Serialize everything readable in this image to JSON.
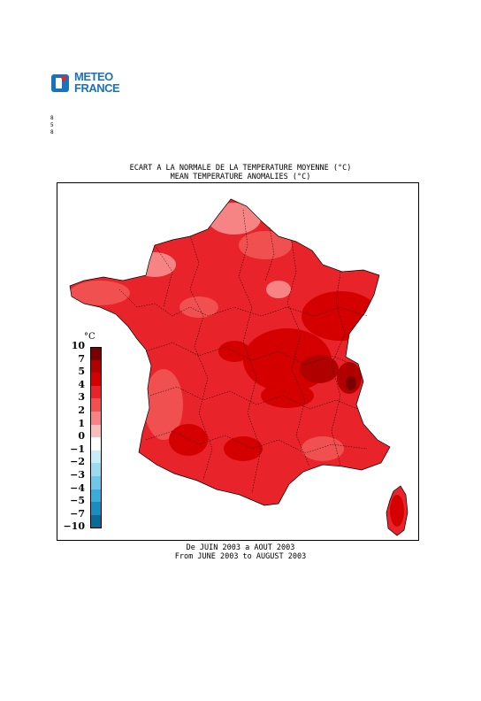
{
  "logo": {
    "line1": "METEO",
    "line2": "FRANCE"
  },
  "side_marks": [
    "8",
    "5",
    "8"
  ],
  "title": {
    "fr": "ECART A LA NORMALE DE LA TEMPERATURE MOYENNE (°C)",
    "en": "MEAN TEMPERATURE ANOMALIES (°C)"
  },
  "period": {
    "fr": "De JUIN 2003 a AOUT 2003",
    "en": "From JUNE 2003 to AUGUST 2003"
  },
  "legend": {
    "unit": "°C",
    "levels": [
      "10",
      "7",
      "5",
      "4",
      "3",
      "2",
      "1",
      "0",
      "−1",
      "−2",
      "−3",
      "−4",
      "−5",
      "−7",
      "−10"
    ],
    "colors": [
      "#7a0000",
      "#b00000",
      "#d40000",
      "#e8232a",
      "#f05050",
      "#f78484",
      "#fbbcbc",
      "#ffffff",
      "#c8ecf8",
      "#9cdaf0",
      "#6ec6e8",
      "#3aacd8",
      "#1a8cc0",
      "#0a6a98",
      "#04486a"
    ]
  },
  "colors": {
    "base_red": "#e8232a",
    "light_red": "#f78484",
    "dark_red": "#b00000",
    "darkest_red": "#7a0000",
    "logo_blue": "#1a73b8"
  }
}
